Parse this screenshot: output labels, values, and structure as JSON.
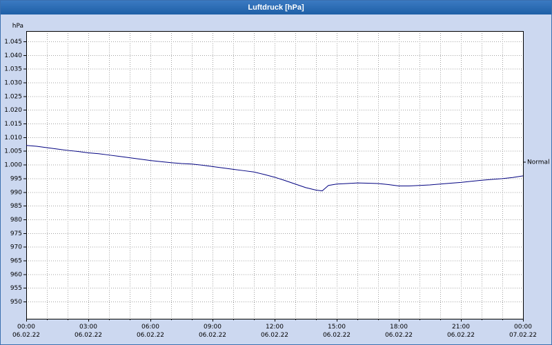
{
  "window": {
    "title": "Luftdruck [hPa]"
  },
  "colors": {
    "background": "#ccd8f0",
    "window_border": "#3a6fb0",
    "titlebar_top": "#3b7ac2",
    "titlebar_bottom": "#1e5fa6",
    "title_text": "#ffffff",
    "plot_bg": "#ffffff",
    "grid": "#a0a0a0",
    "axis": "#000000",
    "line": "#000080",
    "text": "#000000"
  },
  "chart_data": {
    "type": "line",
    "title": "Luftdruck [hPa]",
    "unit_label": "hPa",
    "ylim": [
      950,
      1045
    ],
    "y_tick_step": 5,
    "y_tick_labels": [
      "1.045",
      "1.040",
      "1.035",
      "1.030",
      "1.025",
      "1.020",
      "1.015",
      "1.010",
      "1.005",
      "1.000",
      "995",
      "990",
      "985",
      "980",
      "975",
      "970",
      "965",
      "960",
      "955",
      "950"
    ],
    "xlim": [
      0,
      24
    ],
    "x_tick_hours": [
      0,
      3,
      6,
      9,
      12,
      15,
      18,
      21,
      24
    ],
    "x_tick_times": [
      "00:00",
      "03:00",
      "06:00",
      "09:00",
      "12:00",
      "15:00",
      "18:00",
      "21:00",
      "00:00"
    ],
    "x_tick_dates": [
      "06.02.22",
      "06.02.22",
      "06.02.22",
      "06.02.22",
      "06.02.22",
      "06.02.22",
      "06.02.22",
      "06.02.22",
      "07.02.22"
    ],
    "normal": {
      "label": "Normal",
      "value": 1001
    },
    "grid": true,
    "legend": "none",
    "series": [
      {
        "name": "Luftdruck",
        "points": [
          [
            0,
            1007.0
          ],
          [
            0.5,
            1006.7
          ],
          [
            1,
            1006.2
          ],
          [
            1.5,
            1005.7
          ],
          [
            2,
            1005.2
          ],
          [
            2.5,
            1004.8
          ],
          [
            3,
            1004.3
          ],
          [
            3.5,
            1004.0
          ],
          [
            4,
            1003.5
          ],
          [
            4.5,
            1003.0
          ],
          [
            5,
            1002.5
          ],
          [
            5.5,
            1002.0
          ],
          [
            6,
            1001.5
          ],
          [
            6.5,
            1001.1
          ],
          [
            7,
            1000.7
          ],
          [
            7.5,
            1000.4
          ],
          [
            8,
            1000.2
          ],
          [
            8.5,
            999.8
          ],
          [
            9,
            999.3
          ],
          [
            9.5,
            998.8
          ],
          [
            10,
            998.3
          ],
          [
            10.5,
            997.8
          ],
          [
            11,
            997.3
          ],
          [
            11.5,
            996.4
          ],
          [
            12,
            995.4
          ],
          [
            12.5,
            994.2
          ],
          [
            13,
            992.9
          ],
          [
            13.5,
            991.6
          ],
          [
            14,
            990.7
          ],
          [
            14.3,
            990.4
          ],
          [
            14.6,
            992.4
          ],
          [
            15,
            992.9
          ],
          [
            15.5,
            993.1
          ],
          [
            16,
            993.3
          ],
          [
            16.5,
            993.2
          ],
          [
            17,
            993.1
          ],
          [
            17.5,
            992.7
          ],
          [
            18,
            992.2
          ],
          [
            18.5,
            992.2
          ],
          [
            19,
            992.4
          ],
          [
            19.5,
            992.6
          ],
          [
            20,
            992.9
          ],
          [
            20.5,
            993.2
          ],
          [
            21,
            993.5
          ],
          [
            21.5,
            993.9
          ],
          [
            22,
            994.3
          ],
          [
            22.5,
            994.6
          ],
          [
            23,
            994.9
          ],
          [
            23.5,
            995.3
          ],
          [
            24,
            995.9
          ]
        ]
      }
    ]
  }
}
